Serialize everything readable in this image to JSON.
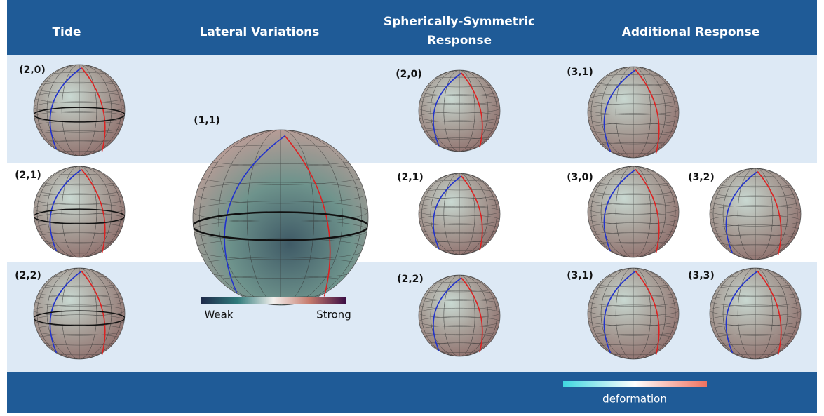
{
  "header": {
    "columns": [
      "Tide",
      "Lateral Variations",
      "Spherically-Symmetric Response",
      "Additional Response"
    ]
  },
  "globes": [
    {
      "label": "(2,0)"
    },
    {
      "label": "(2,1)"
    },
    {
      "label": "(2,2)"
    },
    {
      "label": "(1,1)"
    },
    {
      "label": "(2,0)"
    },
    {
      "label": "(2,1)"
    },
    {
      "label": "(2,2)"
    },
    {
      "label": "(3,1)"
    },
    {
      "label": "(3,0)"
    },
    {
      "label": "(3,2)"
    },
    {
      "label": "(3,1)"
    },
    {
      "label": "(3,3)"
    }
  ],
  "lateral_colorbar": {
    "low": "Weak",
    "high": "Strong"
  },
  "deformation_colorbar": {
    "label": "deformation"
  }
}
